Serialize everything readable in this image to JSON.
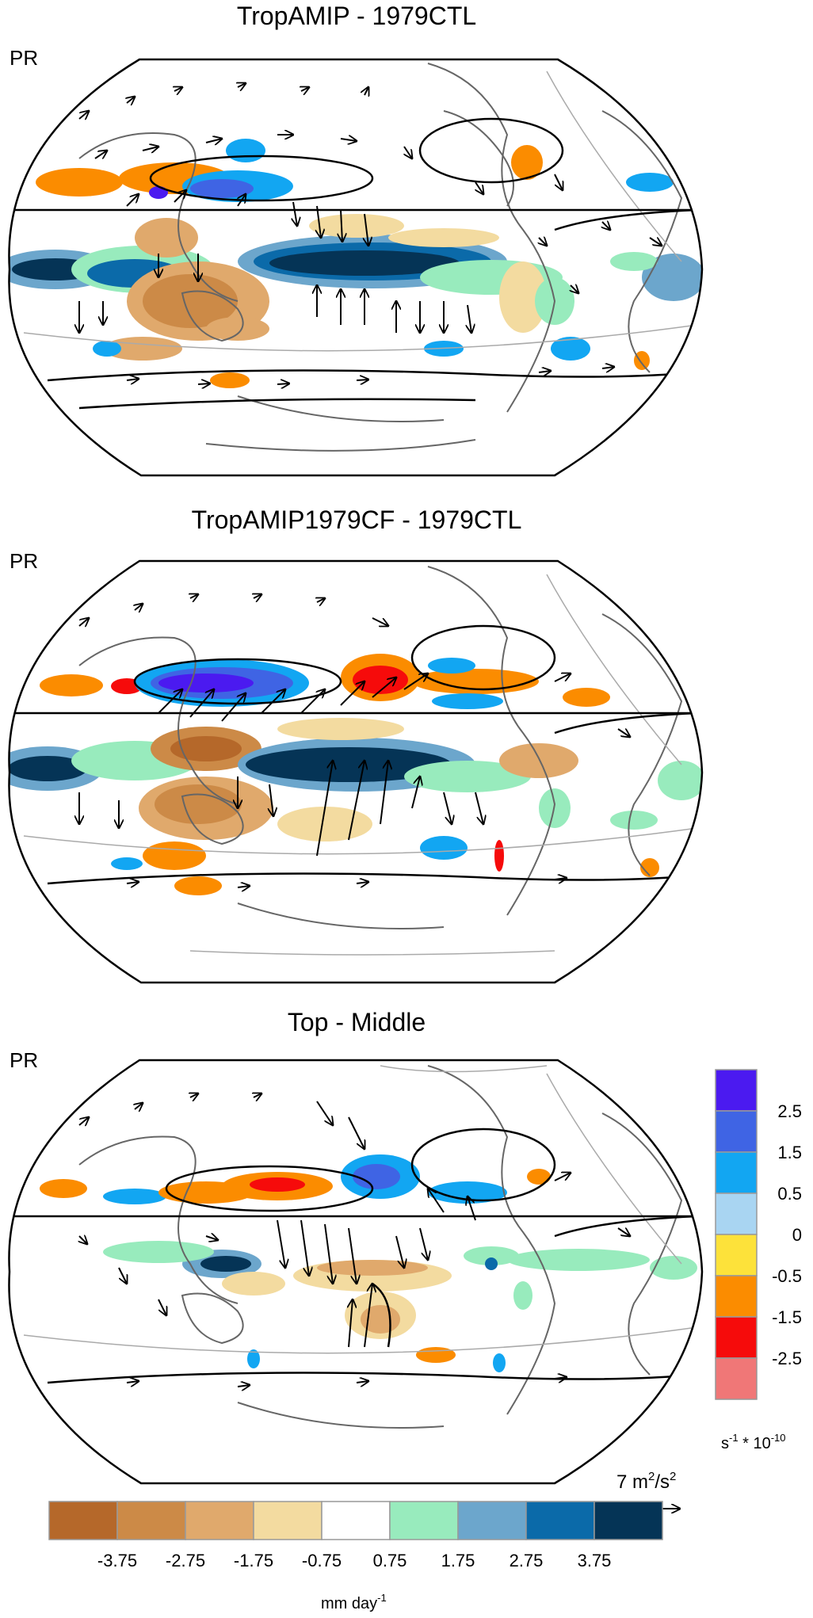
{
  "panels": [
    {
      "title": "TropAMIP - 1979CTL",
      "variable": "PR"
    },
    {
      "title": "TropAMIP1979CF - 1979CTL",
      "variable": "PR"
    },
    {
      "title": "Top - Middle",
      "variable": "PR"
    }
  ],
  "precip_colorbar": {
    "unit_text": "mm day",
    "unit_exp": "-1",
    "ticks": [
      "-3.75",
      "-2.75",
      "-1.75",
      "-0.75",
      "0.75",
      "1.75",
      "2.75",
      "3.75"
    ],
    "colors": [
      "#b5682a",
      "#cc8a47",
      "#e0a96c",
      "#f3dba0",
      "#ffffff",
      "#98ebbd",
      "#6ca6cc",
      "#0b6aa9",
      "#053456"
    ]
  },
  "vort_colorbar": {
    "unit_base": "s",
    "unit_exp": "-1",
    "unit_rest": " * 10",
    "unit_exp2": "-10",
    "ticks": [
      "2.5",
      "1.5",
      "0.5",
      "0",
      "-0.5",
      "-1.5",
      "-2.5"
    ],
    "colors": [
      "#4b1af0",
      "#3f64e4",
      "#12a6f2",
      "#a9d5f2",
      "#fde23a",
      "#fb8c00",
      "#f60b0b",
      "#f07777"
    ]
  },
  "reference_vector": {
    "value": "7 m",
    "exp": "2",
    "rest": "/s",
    "exp2": "2"
  },
  "colors": {
    "land": "#666666",
    "contour": "#000000",
    "grid": "#aaaaaa"
  }
}
